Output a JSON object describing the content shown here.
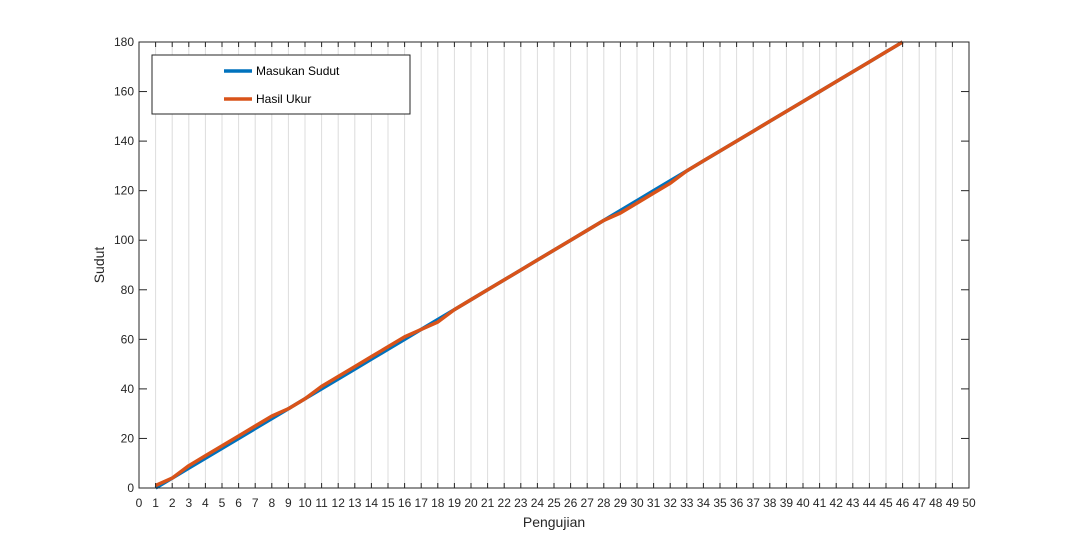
{
  "chart_data": {
    "type": "line",
    "title": "",
    "xlabel": "Pengujian",
    "ylabel": "Sudut",
    "xlim": [
      0,
      50
    ],
    "ylim": [
      0,
      180
    ],
    "xticks": [
      0,
      1,
      2,
      3,
      4,
      5,
      6,
      7,
      8,
      9,
      10,
      11,
      12,
      13,
      14,
      15,
      16,
      17,
      18,
      19,
      20,
      21,
      22,
      23,
      24,
      25,
      26,
      27,
      28,
      29,
      30,
      31,
      32,
      33,
      34,
      35,
      36,
      37,
      38,
      39,
      40,
      41,
      42,
      43,
      44,
      45,
      46,
      47,
      48,
      49,
      50
    ],
    "yticks": [
      0,
      20,
      40,
      60,
      80,
      100,
      120,
      140,
      160,
      180
    ],
    "grid": "x-only",
    "legend_position": "top-left",
    "x": [
      1,
      2,
      3,
      4,
      5,
      6,
      7,
      8,
      9,
      10,
      11,
      12,
      13,
      14,
      15,
      16,
      17,
      18,
      19,
      20,
      21,
      22,
      23,
      24,
      25,
      26,
      27,
      28,
      29,
      30,
      31,
      32,
      33,
      34,
      35,
      36,
      37,
      38,
      39,
      40,
      41,
      42,
      43,
      44,
      45,
      46
    ],
    "series": [
      {
        "name": "Masukan Sudut",
        "color": "#0072BD",
        "values": [
          0,
          4,
          8,
          12,
          16,
          20,
          24,
          28,
          32,
          36,
          40,
          44,
          48,
          52,
          56,
          60,
          64,
          68,
          72,
          76,
          80,
          84,
          88,
          92,
          96,
          100,
          104,
          108,
          112,
          116,
          120,
          124,
          128,
          132,
          136,
          140,
          144,
          148,
          152,
          156,
          160,
          164,
          168,
          172,
          176,
          180
        ]
      },
      {
        "name": "Hasil Ukur",
        "color": "#D95319",
        "values": [
          1,
          4,
          9,
          13,
          17,
          21,
          25,
          29,
          32,
          36,
          41,
          45,
          49,
          53,
          57,
          61,
          64,
          67,
          72,
          76,
          80,
          84,
          88,
          92,
          96,
          100,
          104,
          108,
          111,
          115,
          119,
          123,
          128,
          132,
          136,
          140,
          144,
          148,
          152,
          156,
          160,
          164,
          168,
          172,
          176,
          180
        ]
      }
    ]
  }
}
